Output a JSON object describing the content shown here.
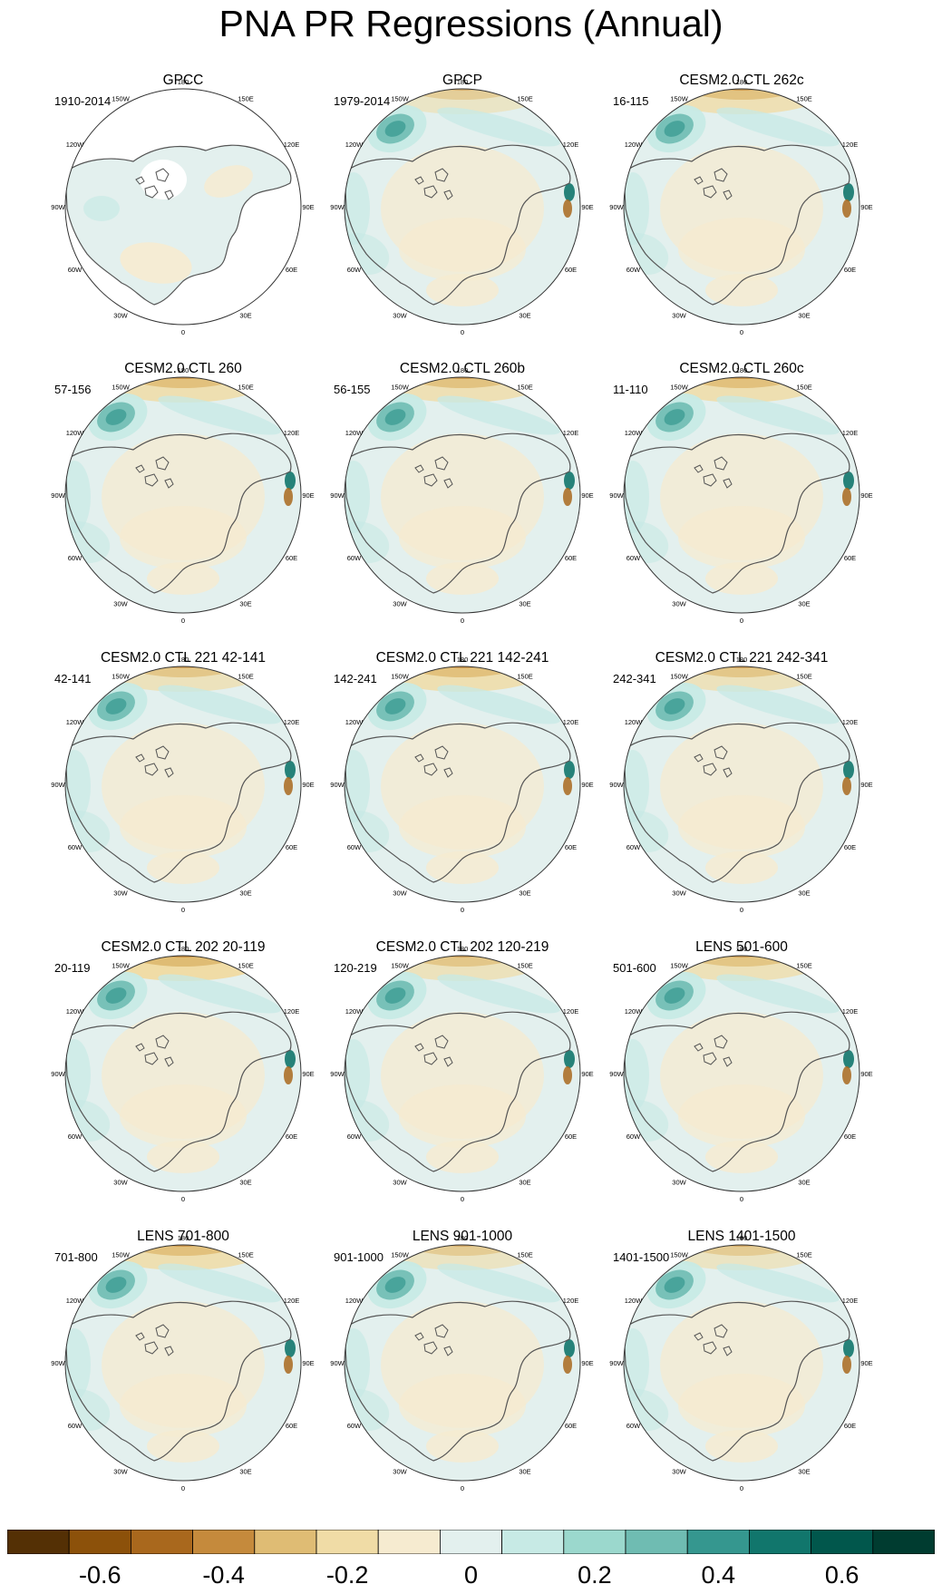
{
  "title": "PNA PR Regressions (Annual)",
  "lon_labels": [
    "180",
    "150E",
    "120E",
    "90E",
    "60E",
    "30E",
    "0",
    "30W",
    "60W",
    "90W",
    "120W",
    "150W"
  ],
  "panels": [
    {
      "title": "GPCC",
      "period": "1910-2014"
    },
    {
      "title": "GPCP",
      "period": "1979-2014"
    },
    {
      "title": "CESM2.0 CTL 262c",
      "period": "16-115"
    },
    {
      "title": "CESM2.0 CTL 260",
      "period": "57-156"
    },
    {
      "title": "CESM2.0 CTL 260b",
      "period": "56-155"
    },
    {
      "title": "CESM2.0 CTL 260c",
      "period": "11-110"
    },
    {
      "title": "CESM2.0 CTL 221 42-141",
      "period": "42-141"
    },
    {
      "title": "CESM2.0 CTL 221 142-241",
      "period": "142-241"
    },
    {
      "title": "CESM2.0 CTL 221 242-341",
      "period": "242-341"
    },
    {
      "title": "CESM2.0 CTL 202 20-119",
      "period": "20-119"
    },
    {
      "title": "CESM2.0 CTL 202 120-219",
      "period": "120-219"
    },
    {
      "title": "LENS 501-600",
      "period": "501-600"
    },
    {
      "title": "LENS 701-800",
      "period": "701-800"
    },
    {
      "title": "LENS 901-1000",
      "period": "901-1000"
    },
    {
      "title": "LENS 1401-1500",
      "period": "1401-1500"
    }
  ],
  "colorbar": {
    "colors": [
      "#543005",
      "#8c510a",
      "#a9681d",
      "#c58a3c",
      "#dfbc74",
      "#f0dca6",
      "#f6ebd0",
      "#e3f0ee",
      "#c7eae5",
      "#9bd8cd",
      "#6fbcb2",
      "#35978f",
      "#11766c",
      "#01574c",
      "#003c30"
    ],
    "labels": [
      "-0.6",
      "-0.4",
      "-0.2",
      "0",
      "0.2",
      "0.4",
      "0.6"
    ],
    "label_values": [
      -0.6,
      -0.4,
      -0.2,
      0,
      0.2,
      0.4,
      0.6
    ]
  }
}
